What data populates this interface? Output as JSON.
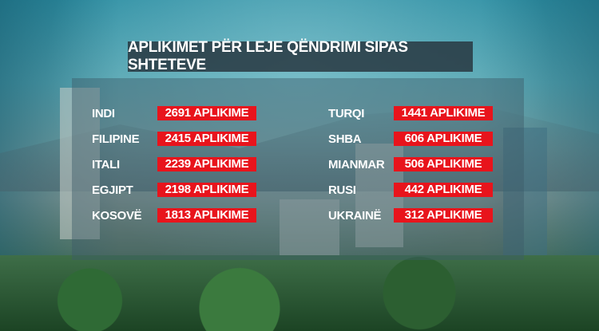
{
  "title": "APLIKIMET PËR LEJE QËNDRIMI SIPAS SHTETEVE",
  "left": [
    {
      "country": "INDI",
      "value": "2691 APLIKIME"
    },
    {
      "country": "FILIPINE",
      "value": "2415 APLIKIME"
    },
    {
      "country": "ITALI",
      "value": "2239 APLIKIME"
    },
    {
      "country": "EGJIPT",
      "value": "2198 APLIKIME"
    },
    {
      "country": "KOSOVË",
      "value": "1813 APLIKIME"
    }
  ],
  "right": [
    {
      "country": "TURQI",
      "value": "1441 APLIKIME"
    },
    {
      "country": "SHBA",
      "value": "606 APLIKIME"
    },
    {
      "country": "MIANMAR",
      "value": "506 APLIKIME"
    },
    {
      "country": "RUSI",
      "value": "442 APLIKIME"
    },
    {
      "country": "UKRAINË",
      "value": "312 APLIKIME"
    }
  ],
  "colors": {
    "value_bg": "#e8141c",
    "title_bg": "#28373f"
  }
}
